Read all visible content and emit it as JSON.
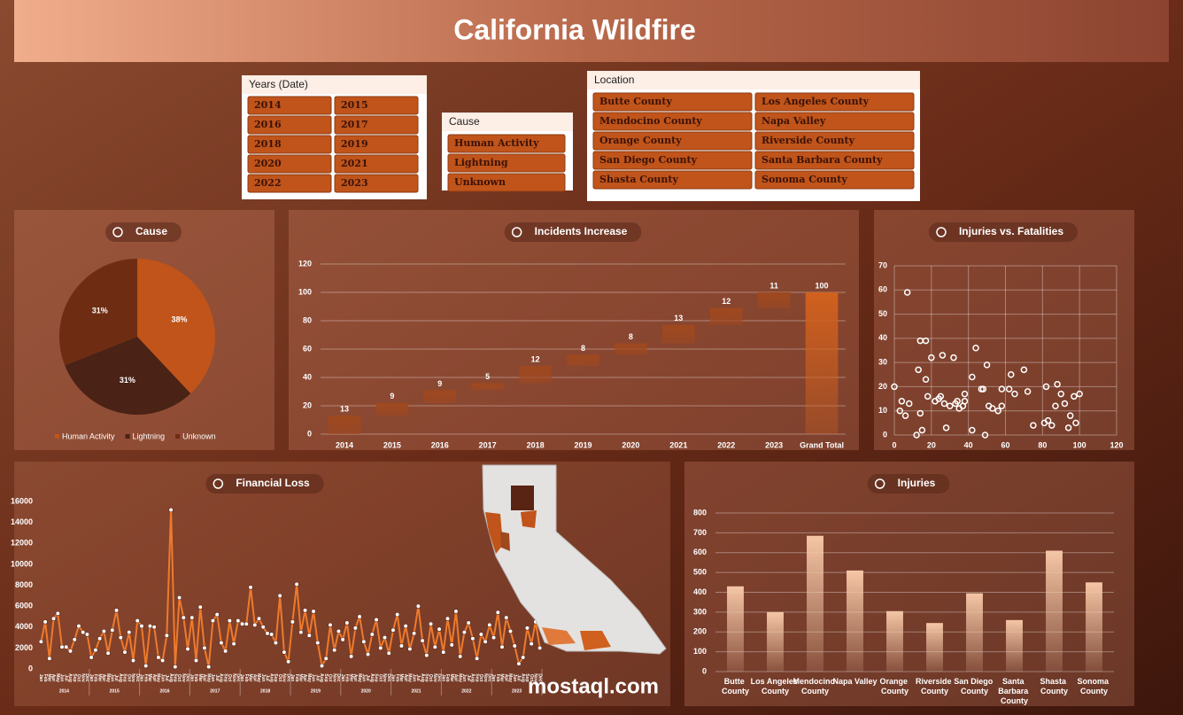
{
  "title": "California Wildfire",
  "watermark": "mostaql.com",
  "slicers": [
    {
      "title": "Years (Date)",
      "items": [
        "2014",
        "2015",
        "2016",
        "2017",
        "2018",
        "2019",
        "2020",
        "2021",
        "2022",
        "2023"
      ]
    },
    {
      "title": "Cause",
      "items": [
        "Human Activity",
        "Lightning",
        "Unknown"
      ]
    },
    {
      "title": "Location",
      "items": [
        "Butte County",
        "Los Angeles County",
        "Mendocino County",
        "Napa Valley",
        "Orange County",
        "Riverside County",
        "San Diego County",
        "Santa Barbara County",
        "Shasta County",
        "Sonoma County"
      ]
    }
  ],
  "chart_data": [
    {
      "type": "pie",
      "title": "Cause",
      "categories": [
        "Human Activity",
        "Lightning",
        "Unknown"
      ],
      "values": [
        38,
        31,
        31
      ],
      "value_labels": [
        "38%",
        "31%",
        "31%"
      ],
      "colors": [
        "#c0541a",
        "#4a2216",
        "#6e2d12"
      ],
      "legend": "bottom"
    },
    {
      "type": "waterfall",
      "title": "Incidents Increase",
      "categories": [
        "2014",
        "2015",
        "2016",
        "2017",
        "2018",
        "2019",
        "2020",
        "2021",
        "2022",
        "2023",
        "Grand Total"
      ],
      "values": [
        13,
        9,
        9,
        5,
        12,
        8,
        8,
        13,
        12,
        11,
        100
      ],
      "last_is_total": true,
      "color": "#a0481e",
      "total_color": "#d0601e",
      "ylim": [
        0,
        120
      ],
      "yticks": [
        0,
        20,
        40,
        60,
        80,
        100,
        120
      ],
      "grid": true
    },
    {
      "type": "scatter",
      "title": "Injuries vs. Fatalities",
      "x": [
        0,
        3,
        4,
        6,
        8,
        7,
        12,
        13,
        14,
        14,
        17,
        15,
        17,
        18,
        20,
        22,
        24,
        25,
        26,
        27,
        28,
        30,
        32,
        33,
        34,
        35,
        37,
        38,
        38,
        42,
        42,
        44,
        47,
        48,
        49,
        50,
        51,
        53,
        56,
        58,
        58,
        63,
        62,
        65,
        70,
        72,
        75,
        82,
        81,
        83,
        85,
        87,
        88,
        90,
        92,
        95,
        94,
        97,
        98,
        100
      ],
      "values": [
        20,
        10,
        14,
        8,
        13,
        59,
        0,
        27,
        39,
        9,
        39,
        2,
        23,
        16,
        32,
        14,
        15,
        16,
        33,
        13,
        3,
        12,
        32,
        13,
        14,
        11,
        12,
        17,
        14,
        24,
        2,
        36,
        19,
        19,
        0,
        29,
        12,
        11,
        10,
        12,
        19,
        25,
        19,
        17,
        27,
        18,
        4,
        20,
        5,
        6,
        4,
        12,
        21,
        17,
        13,
        8,
        3,
        16,
        5,
        17
      ],
      "color": "#ffffff",
      "xlim": [
        0,
        120
      ],
      "xticks": [
        0,
        20,
        40,
        60,
        80,
        100,
        120
      ],
      "ylim": [
        0,
        70
      ],
      "yticks": [
        0,
        10,
        20,
        30,
        40,
        50,
        60,
        70
      ],
      "grid": true
    },
    {
      "type": "line",
      "title": "Financial Loss",
      "color": "#ee7a2c",
      "marker_color": "#ffffff",
      "ylim": [
        0,
        16000
      ],
      "yticks": [
        0,
        2000,
        4000,
        6000,
        8000,
        10000,
        12000,
        14000,
        16000
      ],
      "groups": [
        {
          "name": "2014",
          "categories": [
            "Jan",
            "Feb",
            "Mar",
            "Apr",
            "May",
            "Jun",
            "Jul",
            "Aug",
            "Sep",
            "Oct",
            "Nov",
            "Dec"
          ],
          "values": [
            2600,
            4500,
            1000,
            4800,
            5300,
            2100,
            2100,
            1700,
            2800,
            4100,
            3500,
            3300
          ]
        },
        {
          "name": "2015",
          "categories": [
            "Jan",
            "Feb",
            "Mar",
            "Apr",
            "May",
            "Jun",
            "Jul",
            "Aug",
            "Sep",
            "Oct",
            "Nov",
            "Dec"
          ],
          "values": [
            1100,
            1800,
            2900,
            3600,
            1500,
            3700,
            5600,
            3000,
            1600,
            3500,
            800,
            4600
          ]
        },
        {
          "name": "2016",
          "categories": [
            "Jan",
            "Feb",
            "Mar",
            "Apr",
            "May",
            "Jun",
            "Jul",
            "Aug",
            "Sep",
            "Oct",
            "Nov",
            "Dec"
          ],
          "values": [
            4100,
            300,
            4100,
            4000,
            1100,
            800,
            3200,
            15200,
            200,
            6800,
            4900,
            1900
          ]
        },
        {
          "name": "2017",
          "categories": [
            "Jan",
            "Feb",
            "Mar",
            "Apr",
            "May",
            "Jun",
            "Jul",
            "Aug",
            "Sep",
            "Oct",
            "Nov",
            "Dec"
          ],
          "values": [
            4900,
            800,
            5900,
            2000,
            200,
            4600,
            5200,
            2500,
            1700,
            4600,
            2400,
            4600
          ]
        },
        {
          "name": "2018",
          "categories": [
            "Jan",
            "Feb",
            "Mar",
            "Apr",
            "May",
            "Jun",
            "Jul",
            "Aug",
            "Sep",
            "Oct",
            "Nov",
            "Dec"
          ],
          "values": [
            4300,
            4300,
            7800,
            4200,
            4800,
            4000,
            3400,
            3300,
            2500,
            7000,
            1600,
            700
          ]
        },
        {
          "name": "2019",
          "categories": [
            "Jan",
            "Feb",
            "Mar",
            "Apr",
            "May",
            "Jun",
            "Jul",
            "Aug",
            "Sep",
            "Oct",
            "Nov",
            "Dec"
          ],
          "values": [
            4500,
            8100,
            3500,
            5600,
            3200,
            5500,
            2500,
            300,
            1000,
            4200,
            1800,
            3600
          ]
        },
        {
          "name": "2020",
          "categories": [
            "Jan",
            "Feb",
            "Mar",
            "Apr",
            "May",
            "Jun",
            "Jul",
            "Aug",
            "Sep",
            "Oct",
            "Nov",
            "Dec"
          ],
          "values": [
            2800,
            4400,
            1200,
            3900,
            5000,
            2600,
            1400,
            3300,
            4700,
            2000,
            3000,
            1500
          ]
        },
        {
          "name": "2021",
          "categories": [
            "Jan",
            "Feb",
            "Mar",
            "Apr",
            "May",
            "Jun",
            "Jul",
            "Aug",
            "Sep",
            "Oct",
            "Nov",
            "Dec"
          ],
          "values": [
            3700,
            5200,
            2200,
            4100,
            1900,
            3400,
            6000,
            2700,
            1300,
            4300,
            2100,
            3800
          ]
        },
        {
          "name": "2022",
          "categories": [
            "Jan",
            "Feb",
            "Mar",
            "Apr",
            "May",
            "Jun",
            "Jul",
            "Aug",
            "Sep",
            "Oct",
            "Nov",
            "Dec"
          ],
          "values": [
            1600,
            4800,
            2300,
            5500,
            1200,
            3500,
            4400,
            2900,
            1000,
            3300,
            2600,
            4200
          ]
        },
        {
          "name": "2023",
          "categories": [
            "Jan",
            "Feb",
            "Mar",
            "Apr",
            "May",
            "Jun",
            "Jul",
            "Aug",
            "Sep",
            "Oct",
            "Nov",
            "Dec"
          ],
          "values": [
            3000,
            5400,
            2100,
            4900,
            3600,
            2200,
            500,
            1100,
            3900,
            2400,
            4500,
            2000
          ]
        }
      ]
    },
    {
      "type": "bar",
      "title": "Injuries",
      "categories": [
        "Butte County",
        "Los Angeles County",
        "Mendocino County",
        "Napa Valley",
        "Orange County",
        "Riverside County",
        "San Diego County",
        "Santa Barbara County",
        "Shasta County",
        "Sonoma County"
      ],
      "values": [
        430,
        300,
        685,
        510,
        305,
        245,
        395,
        260,
        610,
        450
      ],
      "color": "#f5c6a6",
      "ylim": [
        0,
        800
      ],
      "yticks": [
        0,
        100,
        200,
        300,
        400,
        500,
        600,
        700,
        800
      ],
      "grid": true
    }
  ]
}
